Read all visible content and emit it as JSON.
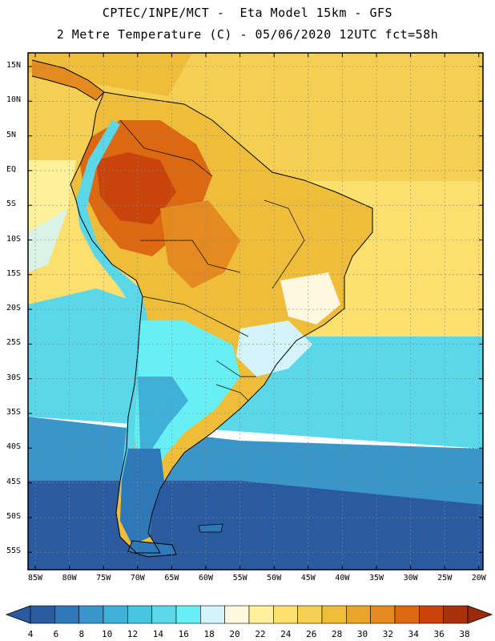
{
  "title": {
    "line1": "CPTEC/INPE/MCT -  Eta Model 15km - GFS",
    "line2": "2 Metre Temperature (C) - 05/06/2020 12UTC fct=58h"
  },
  "lat_ticks": [
    "15N",
    "10N",
    "5N",
    "EQ",
    "5S",
    "10S",
    "15S",
    "20S",
    "25S",
    "30S",
    "35S",
    "40S",
    "45S",
    "50S",
    "55S"
  ],
  "lon_ticks": [
    "85W",
    "80W",
    "75W",
    "70W",
    "65W",
    "60W",
    "55W",
    "50W",
    "45W",
    "40W",
    "35W",
    "30W",
    "25W",
    "20W"
  ],
  "colorbar": {
    "labels": [
      "4",
      "6",
      "8",
      "10",
      "12",
      "14",
      "16",
      "18",
      "20",
      "22",
      "24",
      "26",
      "28",
      "30",
      "32",
      "34",
      "36",
      "38"
    ],
    "colors": [
      "#2a5aa0",
      "#2f78b8",
      "#3a95c8",
      "#3fb0d8",
      "#48c5e0",
      "#5ad8ea",
      "#66f0f5",
      "#d2f4fa",
      "#fff8e0",
      "#fff09a",
      "#fbe070",
      "#f4cf52",
      "#eebd3a",
      "#eaa62a",
      "#e58a1e",
      "#dc6812",
      "#c8440a",
      "#a8300a"
    ],
    "low_color": "#2a5aa0",
    "high_color": "#9a2a08"
  },
  "ocean_bands": [
    {
      "name": "tropical-ocean",
      "color": "#f4cf52"
    },
    {
      "name": "subtropical-ocean",
      "color": "#fbe070"
    },
    {
      "name": "cool-ocean",
      "color": "#5ad8ea"
    },
    {
      "name": "cold-ocean",
      "color": "#3a95c8"
    },
    {
      "name": "polar-ocean",
      "color": "#2a5aa0"
    }
  ]
}
